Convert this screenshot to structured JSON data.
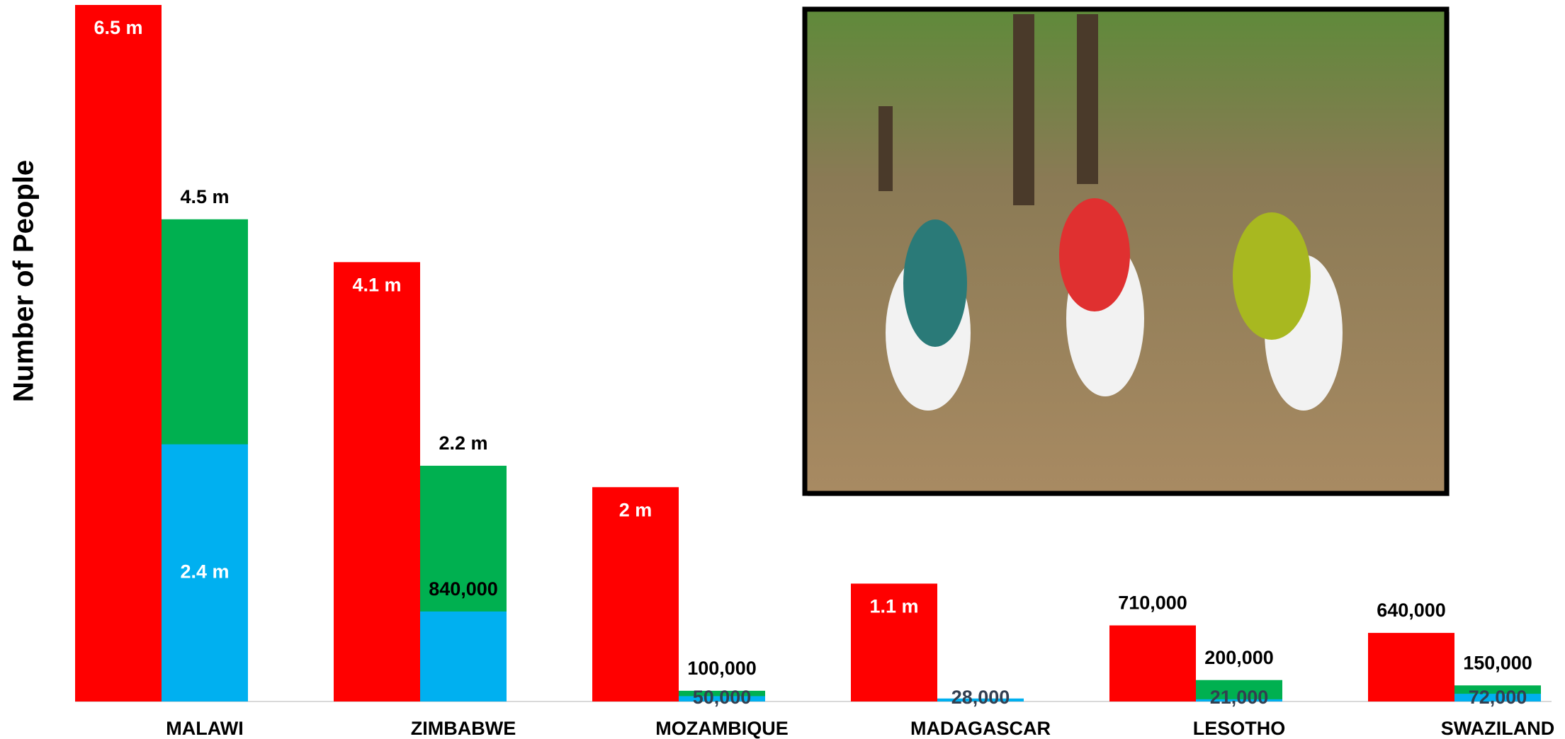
{
  "chart_data": {
    "type": "bar",
    "y_label": "Number of People",
    "categories": [
      "MALAWI",
      "ZIMBABWE",
      "MOZAMBIQUE",
      "MADAGASCAR",
      "LESOTHO",
      "SWAZILAND"
    ],
    "series": [
      {
        "color": "#ff0000",
        "values": [
          6500000,
          4100000,
          2000000,
          1100000,
          710000,
          640000
        ],
        "value_labels": [
          "6.5 m",
          "4.1 m",
          "2 m",
          "1.1 m",
          "710,000",
          "640,000"
        ]
      },
      {
        "color": "#00b050",
        "values": [
          4500000,
          2200000,
          100000,
          null,
          200000,
          150000
        ],
        "value_labels": [
          "4.5 m",
          "2.2 m",
          "100,000",
          null,
          "200,000",
          "150,000"
        ]
      },
      {
        "color": "#00b0f0",
        "values": [
          2400000,
          840000,
          50000,
          28000,
          21000,
          72000
        ],
        "value_labels": [
          "2.4 m",
          "840,000",
          "50,000",
          "28,000",
          "21,000",
          "72,000"
        ]
      }
    ]
  }
}
